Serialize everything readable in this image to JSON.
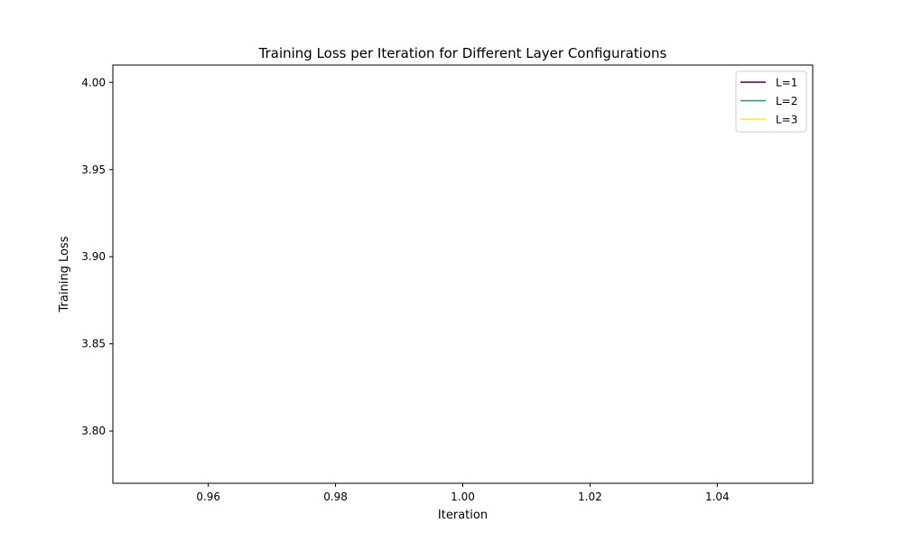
{
  "chart_data": {
    "type": "line",
    "title": "Training Loss per Iteration for Different Layer Configurations",
    "xlabel": "Iteration",
    "ylabel": "Training Loss",
    "xlim": [
      0.945,
      1.055
    ],
    "ylim": [
      3.77,
      4.01
    ],
    "x_ticks": [
      "0.96",
      "0.98",
      "1.00",
      "1.02",
      "1.04"
    ],
    "y_ticks": [
      "3.80",
      "3.85",
      "3.90",
      "3.95",
      "4.00"
    ],
    "grid": false,
    "legend_position": "top-right",
    "series": [
      {
        "name": "L=1",
        "color": "#440154",
        "x": [],
        "y": []
      },
      {
        "name": "L=2",
        "color": "#21918c",
        "x": [],
        "y": []
      },
      {
        "name": "L=3",
        "color": "#fde725",
        "x": [],
        "y": []
      }
    ]
  }
}
